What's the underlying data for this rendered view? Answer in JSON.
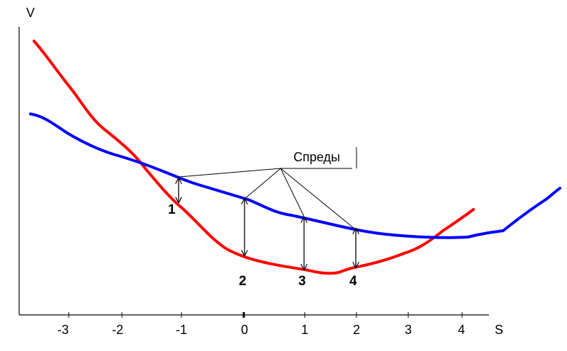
{
  "axes": {
    "y_label": "V",
    "x_label": "S",
    "x_ticks": [
      "-3",
      "-2",
      "-1",
      "0",
      "1",
      "2",
      "3",
      "4"
    ]
  },
  "curves": {
    "red": {
      "color": "#ff0000"
    },
    "blue": {
      "color": "#0000ff"
    }
  },
  "annotation": {
    "text": "Спреды"
  },
  "spread_labels": [
    "1",
    "2",
    "3",
    "4"
  ]
}
